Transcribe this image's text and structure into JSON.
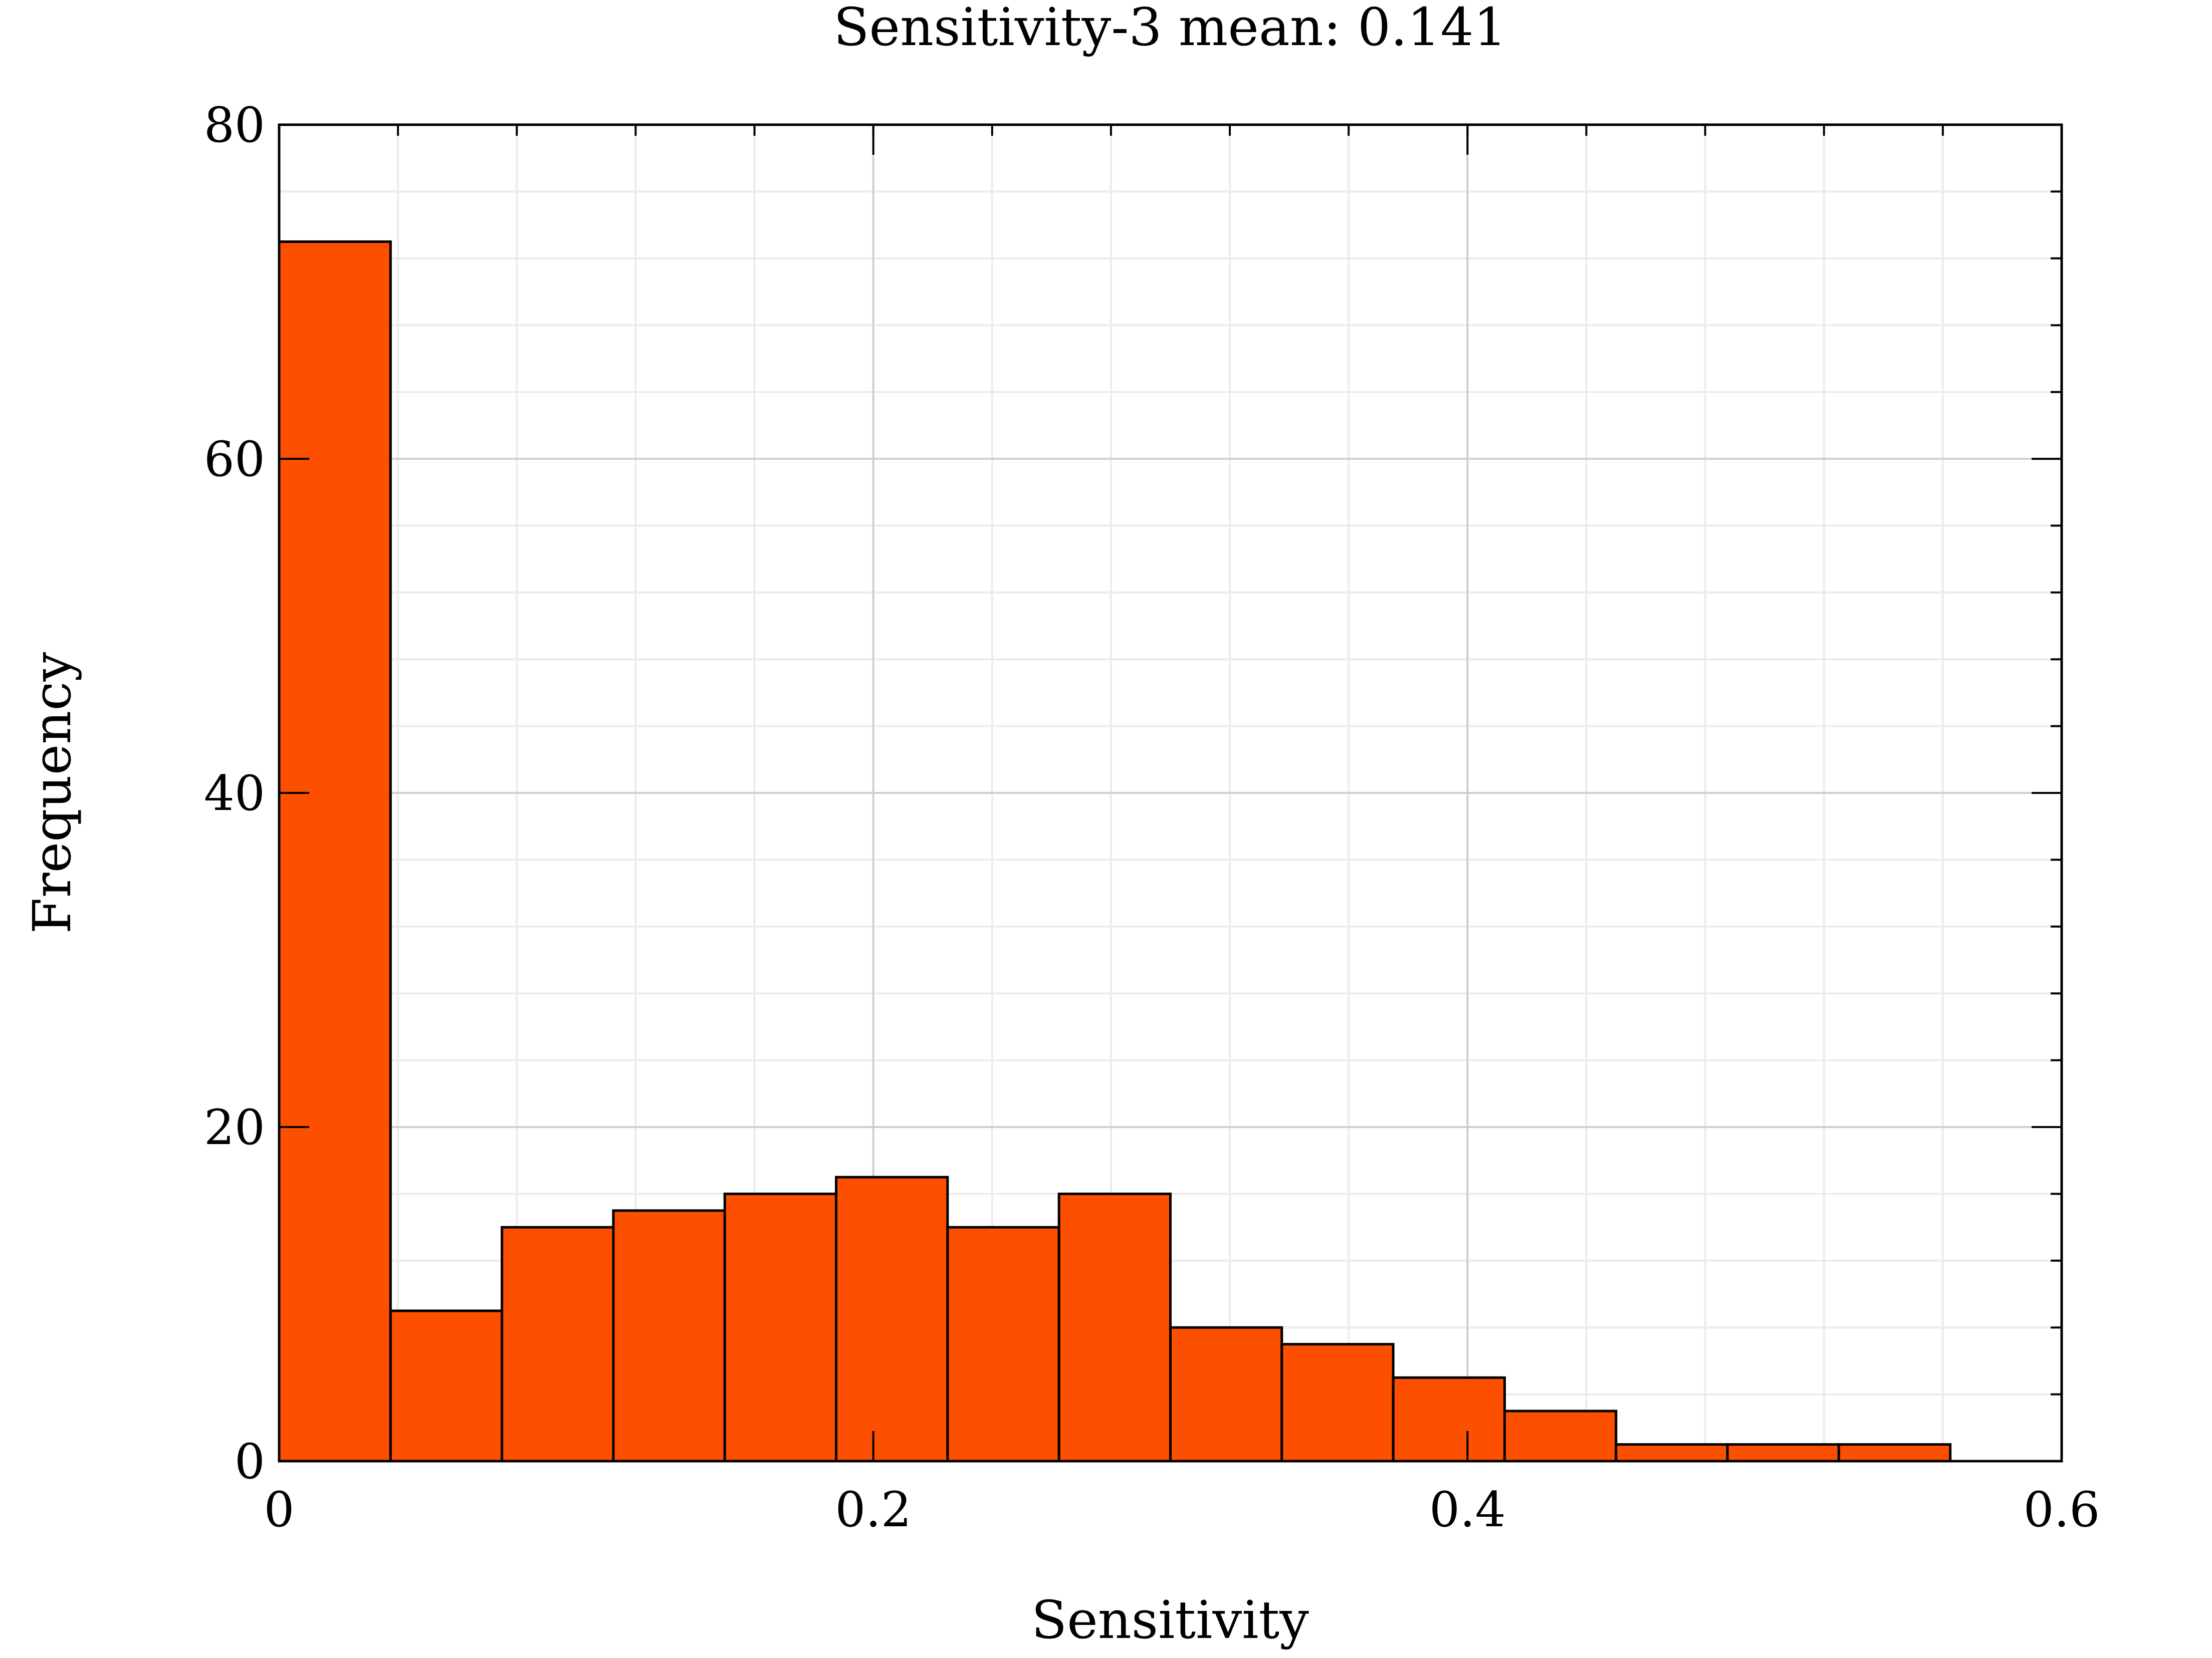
{
  "chart_data": {
    "type": "bar",
    "title": "Sensitivity-3 mean: 0.141",
    "xlabel": "Sensitivity",
    "ylabel": "Frequency",
    "xlim": [
      0,
      0.6
    ],
    "ylim": [
      0,
      80
    ],
    "xticks": [
      "0",
      "0.2",
      "0.4",
      "0.6"
    ],
    "xtick_values": [
      0,
      0.2,
      0.4,
      0.6
    ],
    "yticks": [
      "0",
      "20",
      "40",
      "60",
      "80"
    ],
    "ytick_values": [
      0,
      20,
      40,
      60,
      80
    ],
    "x_minor_step": 0.04,
    "y_minor_step": 4,
    "grid": true,
    "bar_color": "#fc4f00",
    "edge_color": "#000000",
    "bin_edges": [
      0,
      0.0375,
      0.075,
      0.1125,
      0.15,
      0.1875,
      0.225,
      0.2625,
      0.3,
      0.3375,
      0.375,
      0.4125,
      0.45,
      0.4875,
      0.525,
      0.5625
    ],
    "values": [
      73,
      9,
      14,
      15,
      16,
      17,
      14,
      16,
      8,
      7,
      5,
      3,
      1,
      1,
      1
    ]
  }
}
